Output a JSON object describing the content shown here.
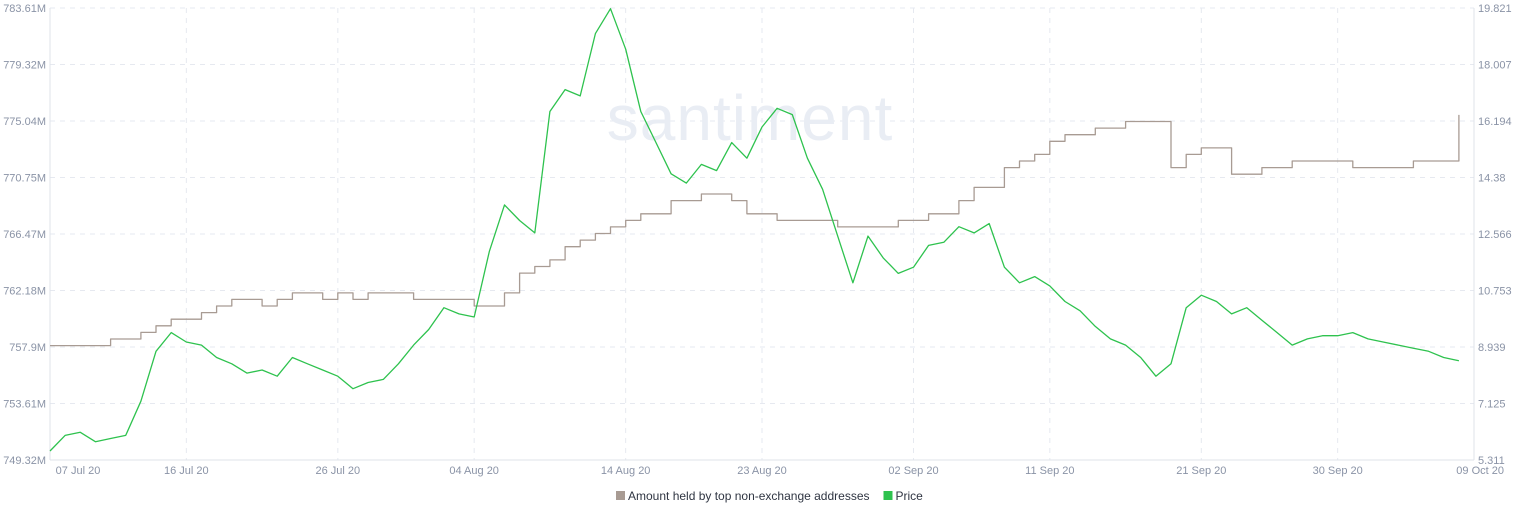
{
  "chart_data": {
    "type": "line",
    "watermark": "santiment",
    "x_labels": [
      "07 Jul 20",
      "16 Jul 20",
      "26 Jul 20",
      "04 Aug 20",
      "14 Aug 20",
      "23 Aug 20",
      "02 Sep 20",
      "11 Sep 20",
      "21 Sep 20",
      "30 Sep 20",
      "09 Oct 20"
    ],
    "x_range": [
      "2020-07-07",
      "2020-10-09"
    ],
    "left_axis": {
      "ticks": [
        "783.61M",
        "779.32M",
        "775.04M",
        "770.75M",
        "766.47M",
        "762.18M",
        "757.9M",
        "753.61M",
        "749.32M"
      ],
      "ylim": [
        749.32,
        783.61
      ]
    },
    "right_axis": {
      "ticks": [
        "19.821",
        "18.007",
        "16.194",
        "14.38",
        "12.566",
        "10.753",
        "8.939",
        "7.125",
        "5.311"
      ],
      "ylim": [
        5.311,
        19.821
      ]
    },
    "grid": true,
    "legend": {
      "position": "bottom-center"
    },
    "series": [
      {
        "name": "Amount held by top non-exchange addresses",
        "axis": "left",
        "color": "#a89b93",
        "dates": [
          "2020-07-07",
          "2020-07-10",
          "2020-07-11",
          "2020-07-13",
          "2020-07-14",
          "2020-07-15",
          "2020-07-17",
          "2020-07-18",
          "2020-07-19",
          "2020-07-21",
          "2020-07-22",
          "2020-07-23",
          "2020-07-24",
          "2020-07-25",
          "2020-07-26",
          "2020-07-27",
          "2020-07-28",
          "2020-07-29",
          "2020-07-31",
          "2020-08-02",
          "2020-08-03",
          "2020-08-04",
          "2020-08-05",
          "2020-08-06",
          "2020-08-07",
          "2020-08-08",
          "2020-08-09",
          "2020-08-10",
          "2020-08-11",
          "2020-08-12",
          "2020-08-13",
          "2020-08-14",
          "2020-08-15",
          "2020-08-17",
          "2020-08-19",
          "2020-08-21",
          "2020-08-22",
          "2020-08-24",
          "2020-08-26",
          "2020-08-28",
          "2020-08-30",
          "2020-09-01",
          "2020-09-03",
          "2020-09-05",
          "2020-09-06",
          "2020-09-08",
          "2020-09-09",
          "2020-09-10",
          "2020-09-11",
          "2020-09-12",
          "2020-09-14",
          "2020-09-16",
          "2020-09-18",
          "2020-09-19",
          "2020-09-20",
          "2020-09-21",
          "2020-09-23",
          "2020-09-25",
          "2020-09-27",
          "2020-09-29",
          "2020-10-01",
          "2020-10-03",
          "2020-10-05",
          "2020-10-06",
          "2020-10-07",
          "2020-10-08"
        ],
        "values": [
          758.0,
          758.0,
          758.5,
          759.0,
          759.5,
          760.0,
          760.5,
          761.0,
          761.5,
          761.0,
          761.5,
          762.0,
          762.0,
          761.5,
          762.0,
          761.5,
          762.0,
          762.0,
          761.5,
          761.5,
          761.5,
          761.0,
          761.0,
          762.0,
          763.5,
          764.0,
          764.5,
          765.5,
          766.0,
          766.5,
          767.0,
          767.5,
          768.0,
          769.0,
          769.5,
          769.0,
          768.0,
          767.5,
          767.5,
          767.0,
          767.0,
          767.5,
          768.0,
          769.0,
          770.0,
          771.5,
          772.0,
          772.5,
          773.5,
          774.0,
          774.5,
          775.0,
          775.0,
          771.5,
          772.5,
          773.0,
          771.0,
          771.5,
          772.0,
          772.0,
          771.5,
          771.5,
          772.0,
          772.0,
          772.0,
          775.5
        ]
      },
      {
        "name": "Price",
        "axis": "right",
        "color": "#2ec24e",
        "dates": [
          "2020-07-07",
          "2020-07-08",
          "2020-07-09",
          "2020-07-10",
          "2020-07-11",
          "2020-07-12",
          "2020-07-13",
          "2020-07-14",
          "2020-07-15",
          "2020-07-16",
          "2020-07-17",
          "2020-07-18",
          "2020-07-19",
          "2020-07-20",
          "2020-07-21",
          "2020-07-22",
          "2020-07-23",
          "2020-07-24",
          "2020-07-25",
          "2020-07-26",
          "2020-07-27",
          "2020-07-28",
          "2020-07-29",
          "2020-07-30",
          "2020-07-31",
          "2020-08-01",
          "2020-08-02",
          "2020-08-03",
          "2020-08-04",
          "2020-08-05",
          "2020-08-06",
          "2020-08-07",
          "2020-08-08",
          "2020-08-09",
          "2020-08-10",
          "2020-08-11",
          "2020-08-12",
          "2020-08-13",
          "2020-08-14",
          "2020-08-15",
          "2020-08-16",
          "2020-08-17",
          "2020-08-18",
          "2020-08-19",
          "2020-08-20",
          "2020-08-21",
          "2020-08-22",
          "2020-08-23",
          "2020-08-24",
          "2020-08-25",
          "2020-08-26",
          "2020-08-27",
          "2020-08-28",
          "2020-08-29",
          "2020-08-30",
          "2020-08-31",
          "2020-09-01",
          "2020-09-02",
          "2020-09-03",
          "2020-09-04",
          "2020-09-05",
          "2020-09-06",
          "2020-09-07",
          "2020-09-08",
          "2020-09-09",
          "2020-09-10",
          "2020-09-11",
          "2020-09-12",
          "2020-09-13",
          "2020-09-14",
          "2020-09-15",
          "2020-09-16",
          "2020-09-17",
          "2020-09-18",
          "2020-09-19",
          "2020-09-20",
          "2020-09-21",
          "2020-09-22",
          "2020-09-23",
          "2020-09-24",
          "2020-09-25",
          "2020-09-26",
          "2020-09-27",
          "2020-09-28",
          "2020-09-29",
          "2020-09-30",
          "2020-10-01",
          "2020-10-02",
          "2020-10-03",
          "2020-10-04",
          "2020-10-05",
          "2020-10-06",
          "2020-10-07",
          "2020-10-08"
        ],
        "values": [
          5.6,
          6.1,
          6.2,
          5.9,
          6.0,
          6.1,
          7.2,
          8.8,
          9.4,
          9.1,
          9.0,
          8.6,
          8.4,
          8.1,
          8.2,
          8.0,
          8.6,
          8.4,
          8.2,
          8.0,
          7.6,
          7.8,
          7.9,
          8.4,
          9.0,
          9.5,
          10.2,
          10.0,
          9.9,
          12.0,
          13.5,
          13.0,
          12.6,
          16.5,
          17.2,
          17.0,
          19.0,
          19.8,
          18.5,
          16.5,
          15.5,
          14.5,
          14.2,
          14.8,
          14.6,
          15.5,
          15.0,
          16.0,
          16.6,
          16.4,
          15.0,
          14.0,
          12.5,
          11.0,
          12.5,
          11.8,
          11.3,
          11.5,
          12.2,
          12.3,
          12.8,
          12.6,
          12.9,
          11.5,
          11.0,
          11.2,
          10.9,
          10.4,
          10.1,
          9.6,
          9.2,
          9.0,
          8.6,
          8.0,
          8.4,
          10.2,
          10.6,
          10.4,
          10.0,
          10.2,
          9.8,
          9.4,
          9.0,
          9.2,
          9.3,
          9.3,
          9.4,
          9.2,
          9.1,
          9.0,
          8.9,
          8.8,
          8.6,
          8.5
        ]
      }
    ]
  }
}
